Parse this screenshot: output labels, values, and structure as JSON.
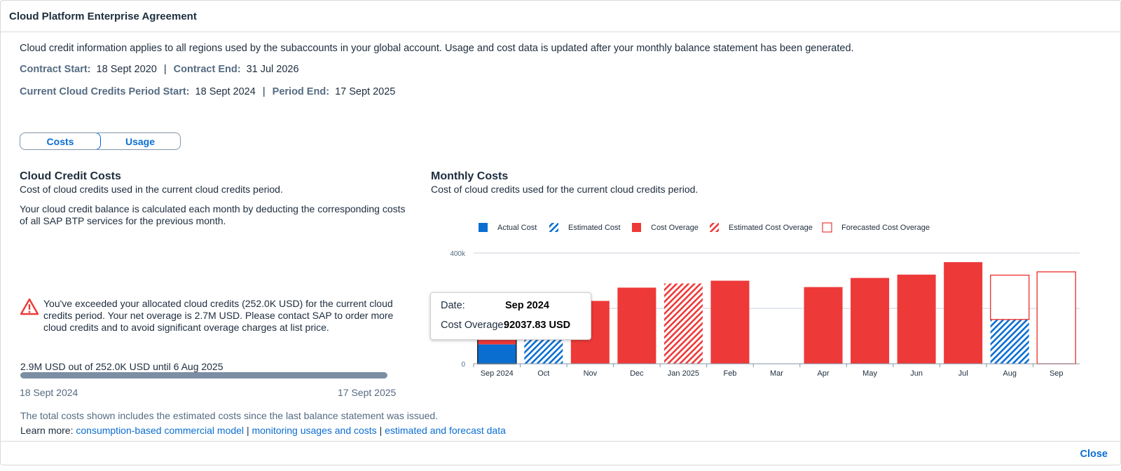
{
  "dialog": {
    "title": "Cloud Platform Enterprise Agreement",
    "close_label": "Close"
  },
  "info": {
    "description": "Cloud credit information applies to all regions used by the subaccounts in your global account. Usage and cost data is updated after your monthly balance statement has been generated.",
    "contract_start_label": "Contract Start:",
    "contract_start_value": "18 Sept 2020",
    "contract_end_label": "Contract End:",
    "contract_end_value": "31 Jul 2026",
    "period_start_label": "Current Cloud Credits Period Start:",
    "period_start_value": "18 Sept 2024",
    "period_end_label": "Period End:",
    "period_end_value": "17 Sept 2025",
    "separator": "|"
  },
  "tabs": {
    "costs": "Costs",
    "usage": "Usage",
    "active": "costs"
  },
  "credit_costs": {
    "title": "Cloud Credit Costs",
    "subtitle": "Cost of cloud credits used in the current cloud credits period.",
    "balance_text": "Your cloud credit balance is calculated each month by deducting the corresponding costs of all SAP BTP services for the previous month.",
    "warning_text": "You've exceeded your allocated cloud credits (252.0K USD) for the current cloud credits period. Your net overage is 2.7M USD. Please contact SAP to order more cloud credits and to avoid significant overage charges at list price.",
    "progress_text": "2.9M USD out of 252.0K USD until 6 Aug 2025",
    "progress_fraction": 1.0,
    "progress_start": "18 Sept 2024",
    "progress_end": "17 Sept 2025"
  },
  "monthly_costs": {
    "title": "Monthly Costs",
    "subtitle": "Cost of cloud credits used for the current cloud credits period."
  },
  "footer": {
    "note": "The total costs shown includes the estimated costs since the last balance statement was issued.",
    "learn_more": "Learn more:",
    "link1": "consumption-based commercial model",
    "link2": "monitoring usages and costs",
    "link3": "estimated and forecast data",
    "sep": "|"
  },
  "tooltip": {
    "date_label": "Date:",
    "date_value": "Sep 2024",
    "metric_label": "Cost Overage:",
    "metric_value": "92037.83 USD"
  },
  "colors": {
    "actual": "#0a6ed1",
    "overage": "#ee3939",
    "gridline": "#c9d1da"
  },
  "chart_data": {
    "type": "bar",
    "stacked": true,
    "categories": [
      "Sep 2024",
      "Oct",
      "Nov",
      "Dec",
      "Jan 2025",
      "Feb",
      "Mar",
      "Apr",
      "May",
      "Jun",
      "Jul",
      "Aug",
      "Sep"
    ],
    "ylim": [
      0,
      400000
    ],
    "yticks": [
      {
        "value": 0,
        "label": "0"
      },
      {
        "value": 400000,
        "label": "400k"
      }
    ],
    "grid": true,
    "legend_position": "top",
    "series": [
      {
        "name": "Actual Cost",
        "style": "solid-blue",
        "values": [
          70000,
          0,
          0,
          0,
          0,
          0,
          0,
          0,
          0,
          0,
          0,
          0,
          0
        ]
      },
      {
        "name": "Estimated Cost",
        "style": "hatched-blue",
        "values": [
          0,
          185000,
          0,
          0,
          0,
          0,
          0,
          0,
          0,
          0,
          0,
          160000,
          0
        ]
      },
      {
        "name": "Cost Overage",
        "style": "solid-red",
        "values": [
          92037.83,
          0,
          227000,
          275000,
          0,
          300000,
          0,
          277000,
          310000,
          322000,
          367000,
          0,
          0
        ]
      },
      {
        "name": "Estimated Cost Overage",
        "style": "hatched-red",
        "values": [
          0,
          0,
          0,
          0,
          290000,
          0,
          0,
          0,
          0,
          0,
          0,
          0,
          0
        ]
      },
      {
        "name": "Forecasted Cost Overage",
        "style": "outline-red",
        "values": [
          0,
          0,
          0,
          0,
          0,
          0,
          0,
          0,
          0,
          0,
          0,
          160000,
          332000
        ]
      }
    ]
  }
}
